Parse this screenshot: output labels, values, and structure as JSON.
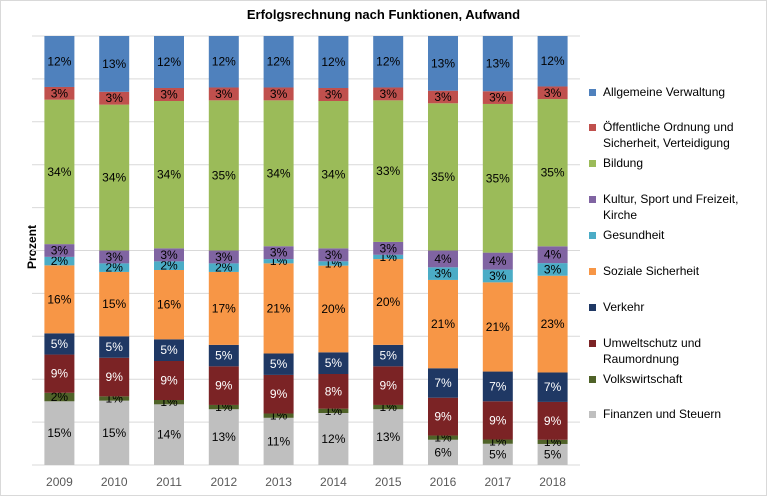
{
  "chart_data": {
    "type": "bar",
    "stacked": true,
    "percent_stacked": true,
    "title": "Erfolgsrechnung nach Funktionen, Aufwand",
    "xlabel": "",
    "ylabel": "Prozent",
    "grid": true,
    "legend_position": "right",
    "categories": [
      "2009",
      "2010",
      "2011",
      "2012",
      "2013",
      "2014",
      "2015",
      "2016",
      "2017",
      "2018"
    ],
    "series": [
      {
        "name": "Finanzen und Steuern",
        "color": "#bfbfbf",
        "values": [
          15,
          15,
          14,
          13,
          11,
          12,
          13,
          6,
          5,
          5
        ]
      },
      {
        "name": "Volkswirtschaft",
        "color": "#4f6228",
        "values": [
          2,
          1,
          1,
          1,
          1,
          1,
          1,
          1,
          1,
          1
        ]
      },
      {
        "name": "Umweltschutz und Raumordnung",
        "color": "#7b2325",
        "values": [
          9,
          9,
          9,
          9,
          9,
          8,
          9,
          9,
          9,
          9
        ]
      },
      {
        "name": "Verkehr",
        "color": "#1f3864",
        "values": [
          5,
          5,
          5,
          5,
          5,
          5,
          5,
          7,
          7,
          7
        ]
      },
      {
        "name": "Soziale Sicherheit",
        "color": "#f79646",
        "values": [
          16,
          15,
          16,
          17,
          21,
          20,
          20,
          21,
          21,
          23
        ]
      },
      {
        "name": "Gesundheit",
        "color": "#4bacc6",
        "values": [
          2,
          2,
          2,
          2,
          1,
          1,
          1,
          3,
          3,
          3
        ]
      },
      {
        "name": "Kultur, Sport und Freizeit, Kirche",
        "color": "#8064a2",
        "values": [
          3,
          3,
          3,
          3,
          3,
          3,
          3,
          4,
          4,
          4
        ]
      },
      {
        "name": "Bildung",
        "color": "#9bbb59",
        "values": [
          34,
          34,
          34,
          35,
          34,
          34,
          33,
          35,
          35,
          35
        ]
      },
      {
        "name": "Öffentliche Ordnung und Sicherheit, Verteidigung",
        "color": "#c0504d",
        "values": [
          3,
          3,
          3,
          3,
          3,
          3,
          3,
          3,
          3,
          3
        ]
      },
      {
        "name": "Allgemeine Verwaltung",
        "color": "#4f81bd",
        "values": [
          12,
          13,
          12,
          12,
          12,
          12,
          12,
          13,
          13,
          12
        ]
      }
    ],
    "legend": [
      "Allgemeine Verwaltung",
      "Öffentliche Ordnung und Sicherheit, Verteidigung",
      "Bildung",
      "Kultur, Sport und Freizeit, Kirche",
      "Gesundheit",
      "Soziale Sicherheit",
      "Verkehr",
      "Umweltschutz und Raumordnung",
      "Volkswirtschaft",
      "Finanzen und Steuern"
    ]
  }
}
